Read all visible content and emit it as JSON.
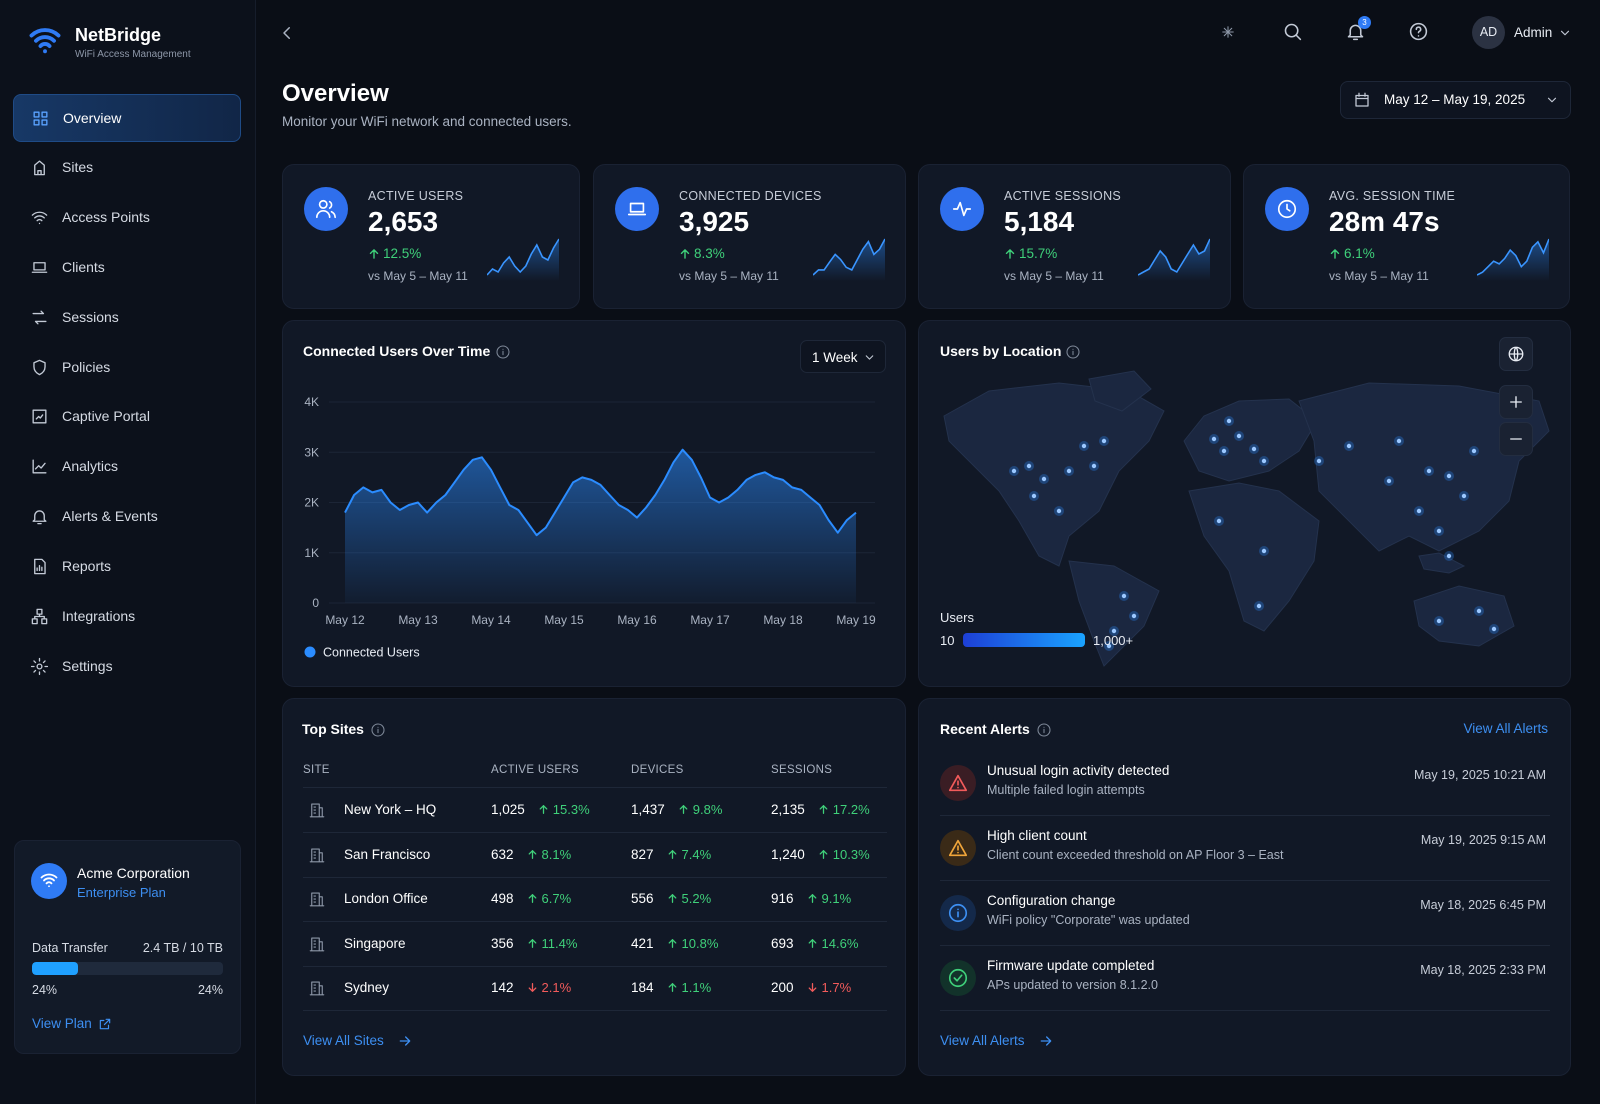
{
  "brand": {
    "name": "NetBridge",
    "tagline": "WiFi Access Management"
  },
  "nav": {
    "active": 0,
    "items": [
      "Overview",
      "Sites",
      "Access Points",
      "Clients",
      "Sessions",
      "Policies",
      "Captive Portal",
      "Analytics",
      "Alerts & Events",
      "Reports",
      "Integrations",
      "Settings"
    ]
  },
  "organization": {
    "name": "Acme Corporation",
    "plan": "Enterprise Plan",
    "usage_title": "Data Transfer",
    "usage_amount": "2.4 TB / 10 TB",
    "usage": {
      "value": 24,
      "label": "24%"
    },
    "link": "View Plan"
  },
  "topbar": {
    "notifications": 3,
    "user": {
      "initials": "AD",
      "name": "Admin"
    }
  },
  "header": {
    "title": "Overview",
    "subtitle": "Monitor your WiFi network and connected users.",
    "date_range": "May 12 – May 19, 2025"
  },
  "kpis": [
    {
      "label": "ACTIVE USERS",
      "value": "2,653",
      "change": "12.5%",
      "trend": "up",
      "comparison": "vs May 5 – May 11",
      "spark": [
        3,
        4,
        3.5,
        5,
        6,
        4.5,
        3.5,
        4.5,
        6.5,
        8,
        6,
        5.5,
        7.5,
        9
      ]
    },
    {
      "label": "CONNECTED DEVICES",
      "value": "3,925",
      "change": "8.3%",
      "trend": "up",
      "comparison": "vs May 5 – May 11",
      "spark": [
        2,
        3,
        3,
        4.5,
        6,
        5,
        3.5,
        3,
        5,
        7,
        8.5,
        6,
        7,
        9
      ]
    },
    {
      "label": "ACTIVE SESSIONS",
      "value": "5,184",
      "change": "15.7%",
      "trend": "up",
      "comparison": "vs May 5 – May 11",
      "spark": [
        3,
        3.5,
        4,
        5.5,
        7,
        6,
        4,
        3.5,
        5,
        6.5,
        8,
        6.5,
        7,
        9
      ]
    },
    {
      "label": "AVG. SESSION TIME",
      "value": "28m 47s",
      "change": "6.1%",
      "trend": "up",
      "comparison": "vs May 5 – May 11",
      "spark": [
        2.5,
        3,
        4,
        5,
        4.5,
        5.5,
        7,
        6,
        4,
        5,
        7.5,
        8.5,
        6.5,
        9
      ]
    }
  ],
  "users_chart": {
    "type": "line",
    "title": "Connected Users Over Time",
    "period": "1 Week",
    "categories": [
      "May 12",
      null,
      null,
      null,
      null,
      null,
      null,
      null,
      "May 13",
      null,
      null,
      null,
      null,
      null,
      null,
      null,
      "May 14",
      null,
      null,
      null,
      null,
      null,
      null,
      null,
      "May 15",
      null,
      null,
      null,
      null,
      null,
      null,
      null,
      "May 16",
      null,
      null,
      null,
      null,
      null,
      null,
      null,
      "May 17",
      null,
      null,
      null,
      null,
      null,
      null,
      null,
      "May 18",
      null,
      null,
      null,
      null,
      null,
      null,
      null,
      "May 19"
    ],
    "series": [
      {
        "name": "Connected Users",
        "color": "#2b8cff",
        "values": [
          1800,
          2150,
          2300,
          2200,
          2250,
          2000,
          1850,
          1950,
          2000,
          1800,
          2000,
          2150,
          2400,
          2650,
          2850,
          2900,
          2650,
          2300,
          1950,
          1850,
          1600,
          1350,
          1500,
          1800,
          2100,
          2400,
          2500,
          2450,
          2350,
          2150,
          1950,
          1850,
          1700,
          1900,
          2150,
          2450,
          2800,
          3050,
          2850,
          2500,
          2100,
          2000,
          2100,
          2250,
          2450,
          2550,
          2600,
          2500,
          2450,
          2300,
          2250,
          2100,
          1950,
          1650,
          1400,
          1650,
          1800
        ]
      }
    ],
    "ylim": [
      0,
      4000
    ],
    "yticks": [
      0,
      {
        "value": 1000,
        "label": "1K"
      },
      {
        "value": 2000,
        "label": "2K"
      },
      {
        "value": 3000,
        "label": "3K"
      },
      {
        "value": 4000,
        "label": "4K"
      }
    ],
    "grid": true
  },
  "map": {
    "title": "Users by Location",
    "legend": {
      "title": "Users",
      "min": 10,
      "max": {
        "value": 1000,
        "label": "1,000+"
      }
    }
  },
  "top_sites": {
    "title": "Top Sites",
    "columns": [
      "SITE",
      "ACTIVE USERS",
      "DEVICES",
      "SESSIONS"
    ],
    "rows": [
      {
        "site": "New York – HQ",
        "cells": [
          {
            "value": "1,025",
            "change": "15.3%",
            "trend": "up"
          },
          {
            "value": "1,437",
            "change": "9.8%",
            "trend": "up"
          },
          {
            "value": "2,135",
            "change": "17.2%",
            "trend": "up"
          }
        ]
      },
      {
        "site": "San Francisco",
        "cells": [
          {
            "value": "632",
            "change": "8.1%",
            "trend": "up"
          },
          {
            "value": "827",
            "change": "7.4%",
            "trend": "up"
          },
          {
            "value": "1,240",
            "change": "10.3%",
            "trend": "up"
          }
        ]
      },
      {
        "site": "London Office",
        "cells": [
          {
            "value": "498",
            "change": "6.7%",
            "trend": "up"
          },
          {
            "value": "556",
            "change": "5.2%",
            "trend": "up"
          },
          {
            "value": "916",
            "change": "9.1%",
            "trend": "up"
          }
        ]
      },
      {
        "site": "Singapore",
        "cells": [
          {
            "value": "356",
            "change": "11.4%",
            "trend": "up"
          },
          {
            "value": "421",
            "change": "10.8%",
            "trend": "up"
          },
          {
            "value": "693",
            "change": "14.6%",
            "trend": "up"
          }
        ]
      },
      {
        "site": "Sydney",
        "cells": [
          {
            "value": "142",
            "change": "2.1%",
            "trend": "down"
          },
          {
            "value": "184",
            "change": "1.1%",
            "trend": "up"
          },
          {
            "value": "200",
            "change": "1.7%",
            "trend": "down"
          }
        ]
      }
    ],
    "link": "View All Sites"
  },
  "alerts": {
    "title": "Recent Alerts",
    "header_link": "View All Alerts",
    "items": [
      {
        "title": "Unusual login activity detected",
        "description": "Multiple failed login attempts",
        "time": "May 19, 2025 10:21 AM",
        "severity": "error"
      },
      {
        "title": "High client count",
        "description": "Client count exceeded threshold on AP Floor 3 – East",
        "time": "May 19, 2025 9:15 AM",
        "severity": "warning"
      },
      {
        "title": "Configuration change",
        "description": "WiFi policy \"Corporate\" was updated",
        "time": "May 18, 2025 6:45 PM",
        "severity": "info"
      },
      {
        "title": "Firmware update completed",
        "description": "APs updated to version 8.1.2.0",
        "time": "May 18, 2025 2:33 PM",
        "severity": "success"
      }
    ],
    "link": "View All Alerts"
  }
}
